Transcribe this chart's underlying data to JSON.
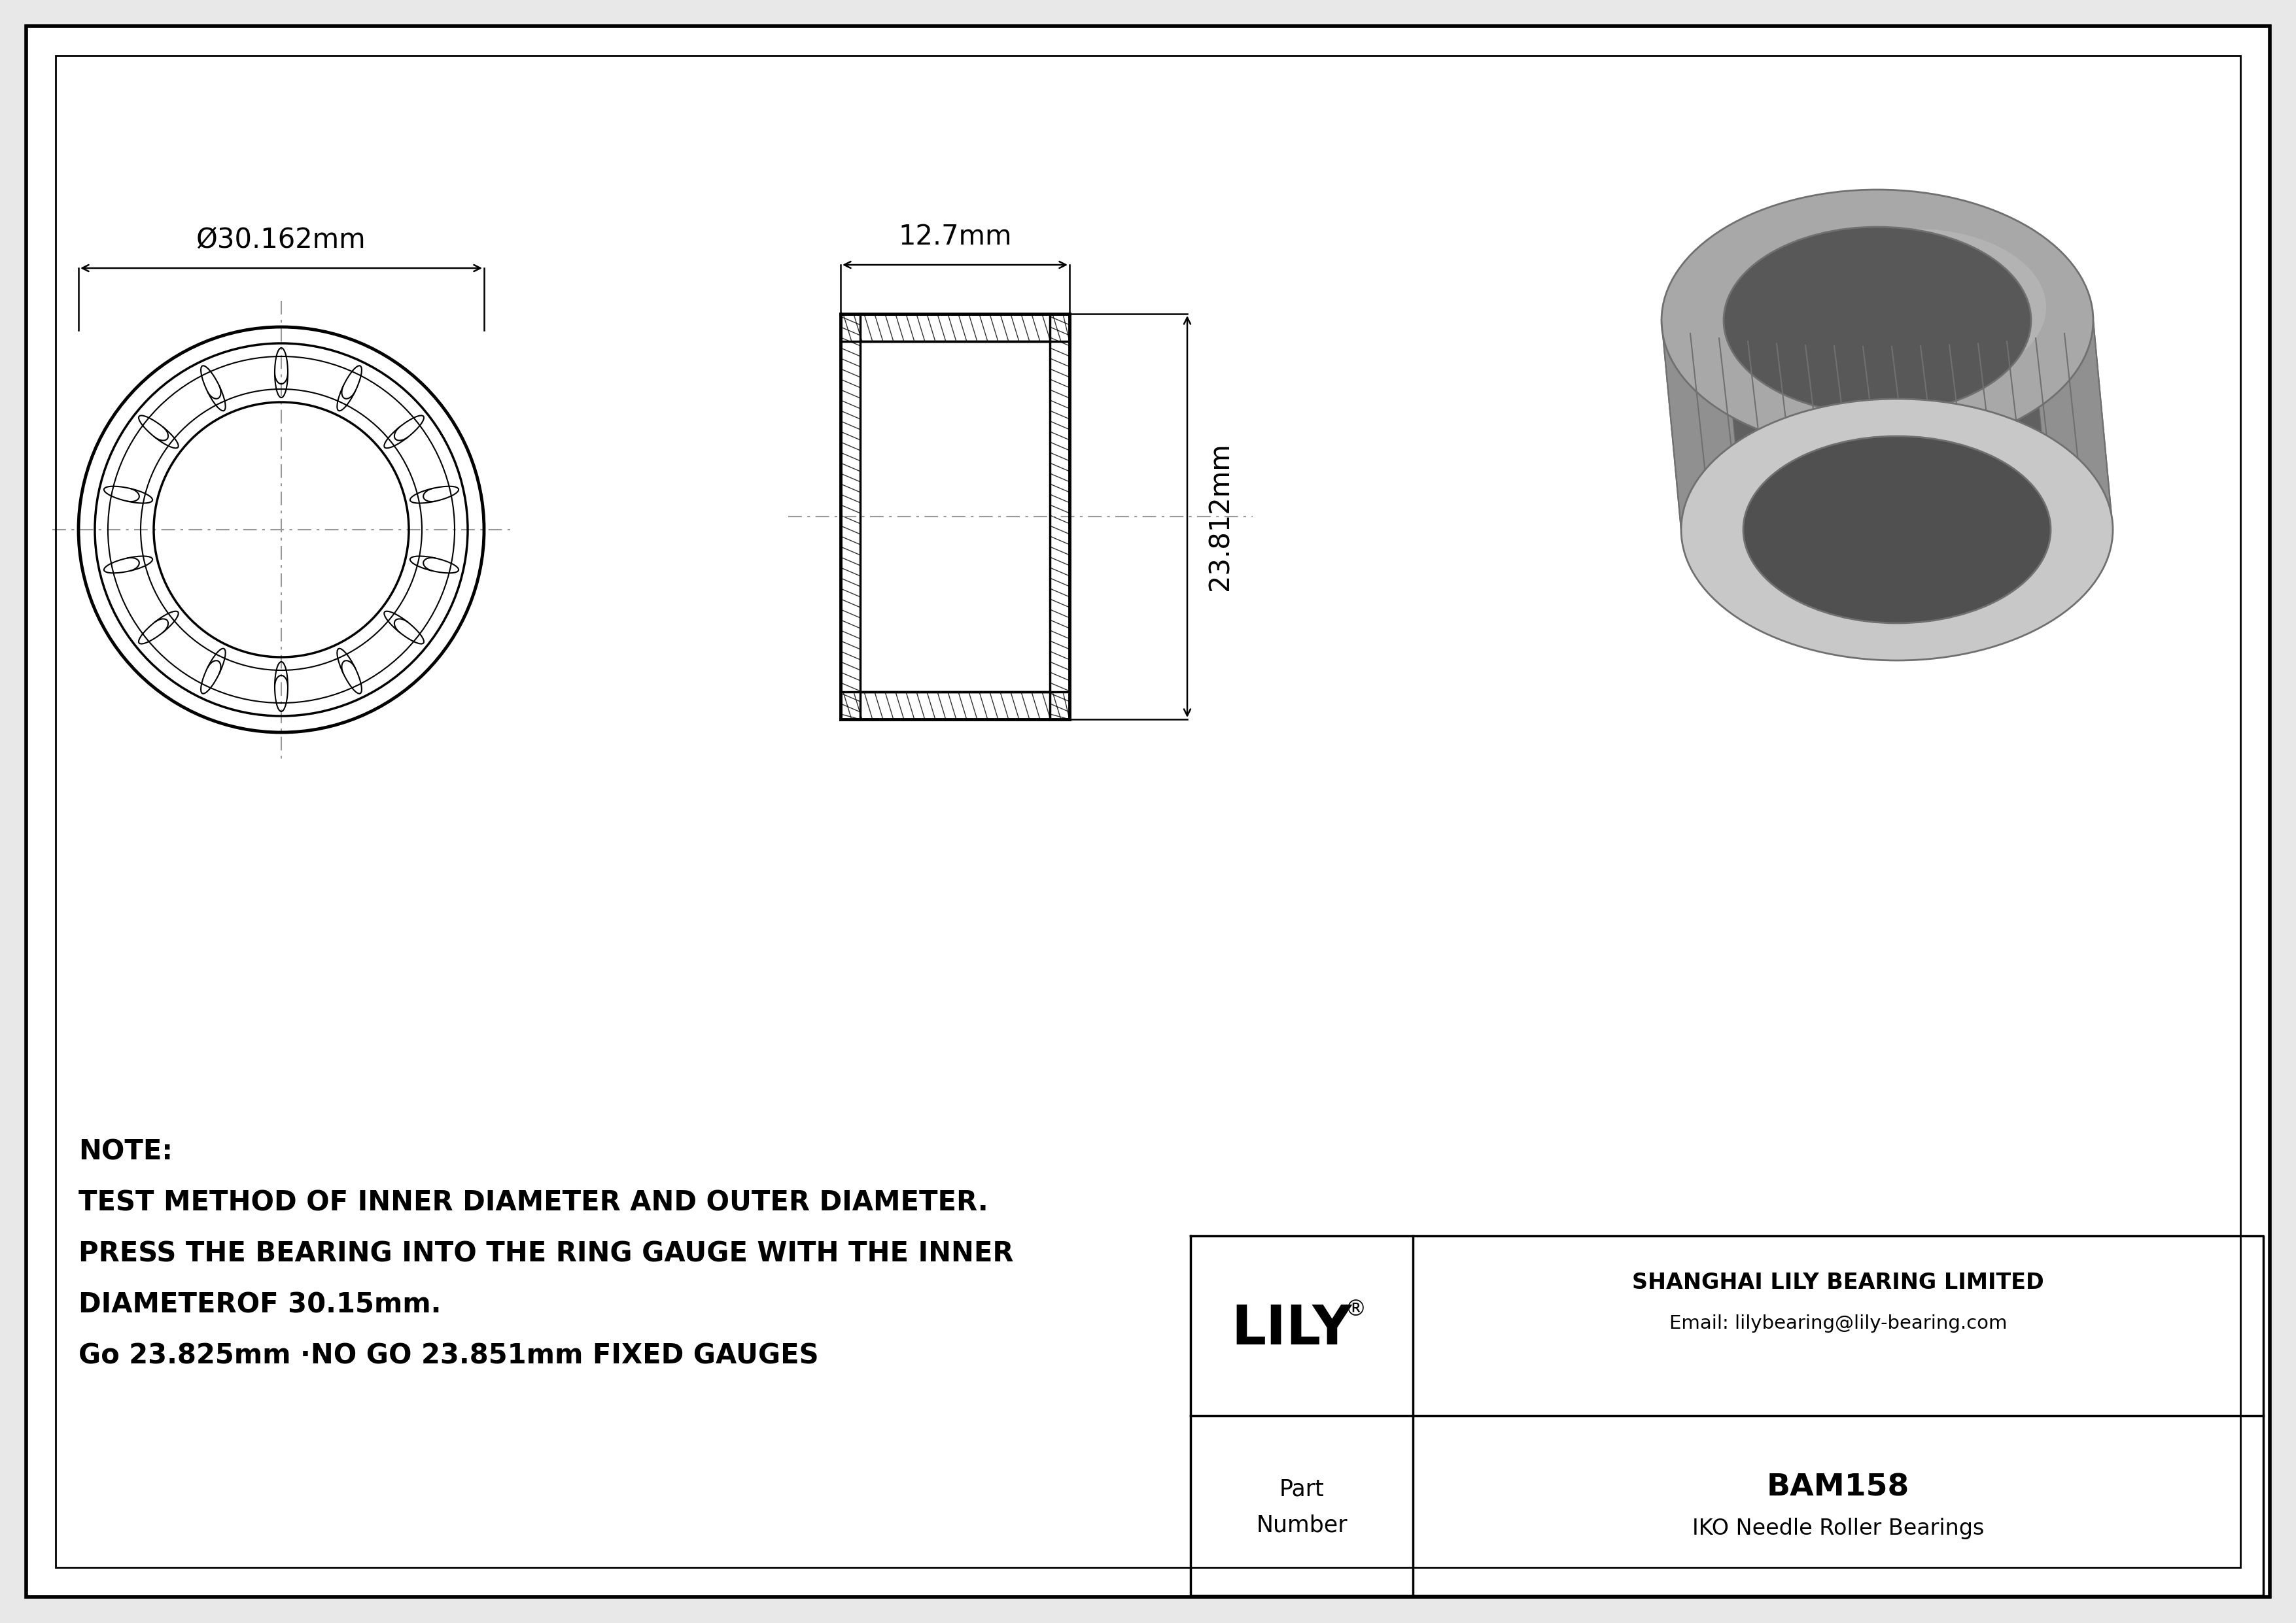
{
  "bg_color": "#e8e8e8",
  "line_color": "#000000",
  "drawing_bg": "#ffffff",
  "border_color": "#000000",
  "dim_color": "#000000",
  "cl_color": "#999999",
  "part_number": "BAM158",
  "bearing_type": "IKO Needle Roller Bearings",
  "company": "SHANGHAI LILY BEARING LIMITED",
  "email": "Email: lilybearing@lily-bearing.com",
  "brand": "LILY",
  "outer_diameter_label": "Ø30.162mm",
  "width_label": "12.7mm",
  "height_label": "23.812mm",
  "note_line1": "NOTE:",
  "note_line2": "TEST METHOD OF INNER DIAMETER AND OUTER DIAMETER.",
  "note_line3": "PRESS THE BEARING INTO THE RING GAUGE WITH THE INNER",
  "note_line4": "DIAMETEROF 30.15mm.",
  "note_line5": "Go 23.825mm ·NO GO 23.851mm FIXED GAUGES",
  "part_label": "Part",
  "number_label": "Number",
  "gray_body": "#a8a8a8",
  "gray_dark": "#707070",
  "gray_light": "#c8c8c8",
  "gray_mid": "#909090",
  "gray_inner": "#888888"
}
